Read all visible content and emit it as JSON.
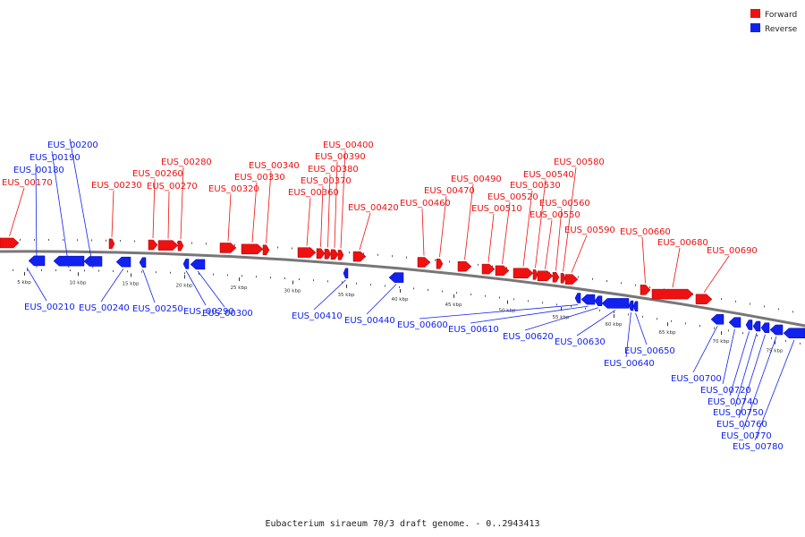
{
  "colors": {
    "forward": "#ee1111",
    "reverse": "#1122ee",
    "backbone": "#777777"
  },
  "legend": [
    {
      "label": "Forward",
      "strand": "forward"
    },
    {
      "label": "Reverse",
      "strand": "reverse"
    }
  ],
  "caption": "Eubacterium siraeum 70/3 draft genome. - 0..2943413",
  "scale": {
    "ticks": [
      "5 kbp",
      "10 kbp",
      "15 kbp",
      "20 kbp",
      "25 kbp",
      "30 kbp",
      "35 kbp",
      "40 kbp",
      "45 kbp",
      "50 kbp",
      "55 kbp",
      "60 kbp",
      "65 kbp",
      "70 kbp",
      "75 kbp"
    ]
  },
  "genes": [
    {
      "name": "EUS_00170",
      "strand": "forward"
    },
    {
      "name": "EUS_00180",
      "strand": "reverse"
    },
    {
      "name": "EUS_00190",
      "strand": "reverse"
    },
    {
      "name": "EUS_00200",
      "strand": "reverse"
    },
    {
      "name": "EUS_00210",
      "strand": "reverse"
    },
    {
      "name": "EUS_00230",
      "strand": "forward"
    },
    {
      "name": "EUS_00240",
      "strand": "reverse"
    },
    {
      "name": "EUS_00250",
      "strand": "reverse"
    },
    {
      "name": "EUS_00260",
      "strand": "forward"
    },
    {
      "name": "EUS_00270",
      "strand": "forward"
    },
    {
      "name": "EUS_00280",
      "strand": "forward"
    },
    {
      "name": "EUS_00290",
      "strand": "reverse"
    },
    {
      "name": "EUS_00300",
      "strand": "reverse"
    },
    {
      "name": "EUS_00320",
      "strand": "forward"
    },
    {
      "name": "EUS_00330",
      "strand": "forward"
    },
    {
      "name": "EUS_00340",
      "strand": "forward"
    },
    {
      "name": "EUS_00360",
      "strand": "forward"
    },
    {
      "name": "EUS_00370",
      "strand": "forward"
    },
    {
      "name": "EUS_00380",
      "strand": "forward"
    },
    {
      "name": "EUS_00390",
      "strand": "forward"
    },
    {
      "name": "EUS_00400",
      "strand": "forward"
    },
    {
      "name": "EUS_00410",
      "strand": "reverse"
    },
    {
      "name": "EUS_00420",
      "strand": "forward"
    },
    {
      "name": "EUS_00440",
      "strand": "reverse"
    },
    {
      "name": "EUS_00460",
      "strand": "forward"
    },
    {
      "name": "EUS_00470",
      "strand": "forward"
    },
    {
      "name": "EUS_00490",
      "strand": "forward"
    },
    {
      "name": "EUS_00510",
      "strand": "forward"
    },
    {
      "name": "EUS_00520",
      "strand": "forward"
    },
    {
      "name": "EUS_00530",
      "strand": "forward"
    },
    {
      "name": "EUS_00540",
      "strand": "forward"
    },
    {
      "name": "EUS_00550",
      "strand": "forward"
    },
    {
      "name": "EUS_00560",
      "strand": "forward"
    },
    {
      "name": "EUS_00580",
      "strand": "forward"
    },
    {
      "name": "EUS_00590",
      "strand": "forward"
    },
    {
      "name": "EUS_00600",
      "strand": "reverse"
    },
    {
      "name": "EUS_00610",
      "strand": "reverse"
    },
    {
      "name": "EUS_00620",
      "strand": "reverse"
    },
    {
      "name": "EUS_00630",
      "strand": "reverse"
    },
    {
      "name": "EUS_00640",
      "strand": "reverse"
    },
    {
      "name": "EUS_00650",
      "strand": "reverse"
    },
    {
      "name": "EUS_00660",
      "strand": "forward"
    },
    {
      "name": "EUS_00680",
      "strand": "forward"
    },
    {
      "name": "EUS_00690",
      "strand": "forward"
    },
    {
      "name": "EUS_00700",
      "strand": "reverse"
    },
    {
      "name": "EUS_00720",
      "strand": "reverse"
    },
    {
      "name": "EUS_00740",
      "strand": "reverse"
    },
    {
      "name": "EUS_00750",
      "strand": "reverse"
    },
    {
      "name": "EUS_00760",
      "strand": "reverse"
    },
    {
      "name": "EUS_00770",
      "strand": "reverse"
    },
    {
      "name": "EUS_00780",
      "strand": "reverse"
    }
  ]
}
